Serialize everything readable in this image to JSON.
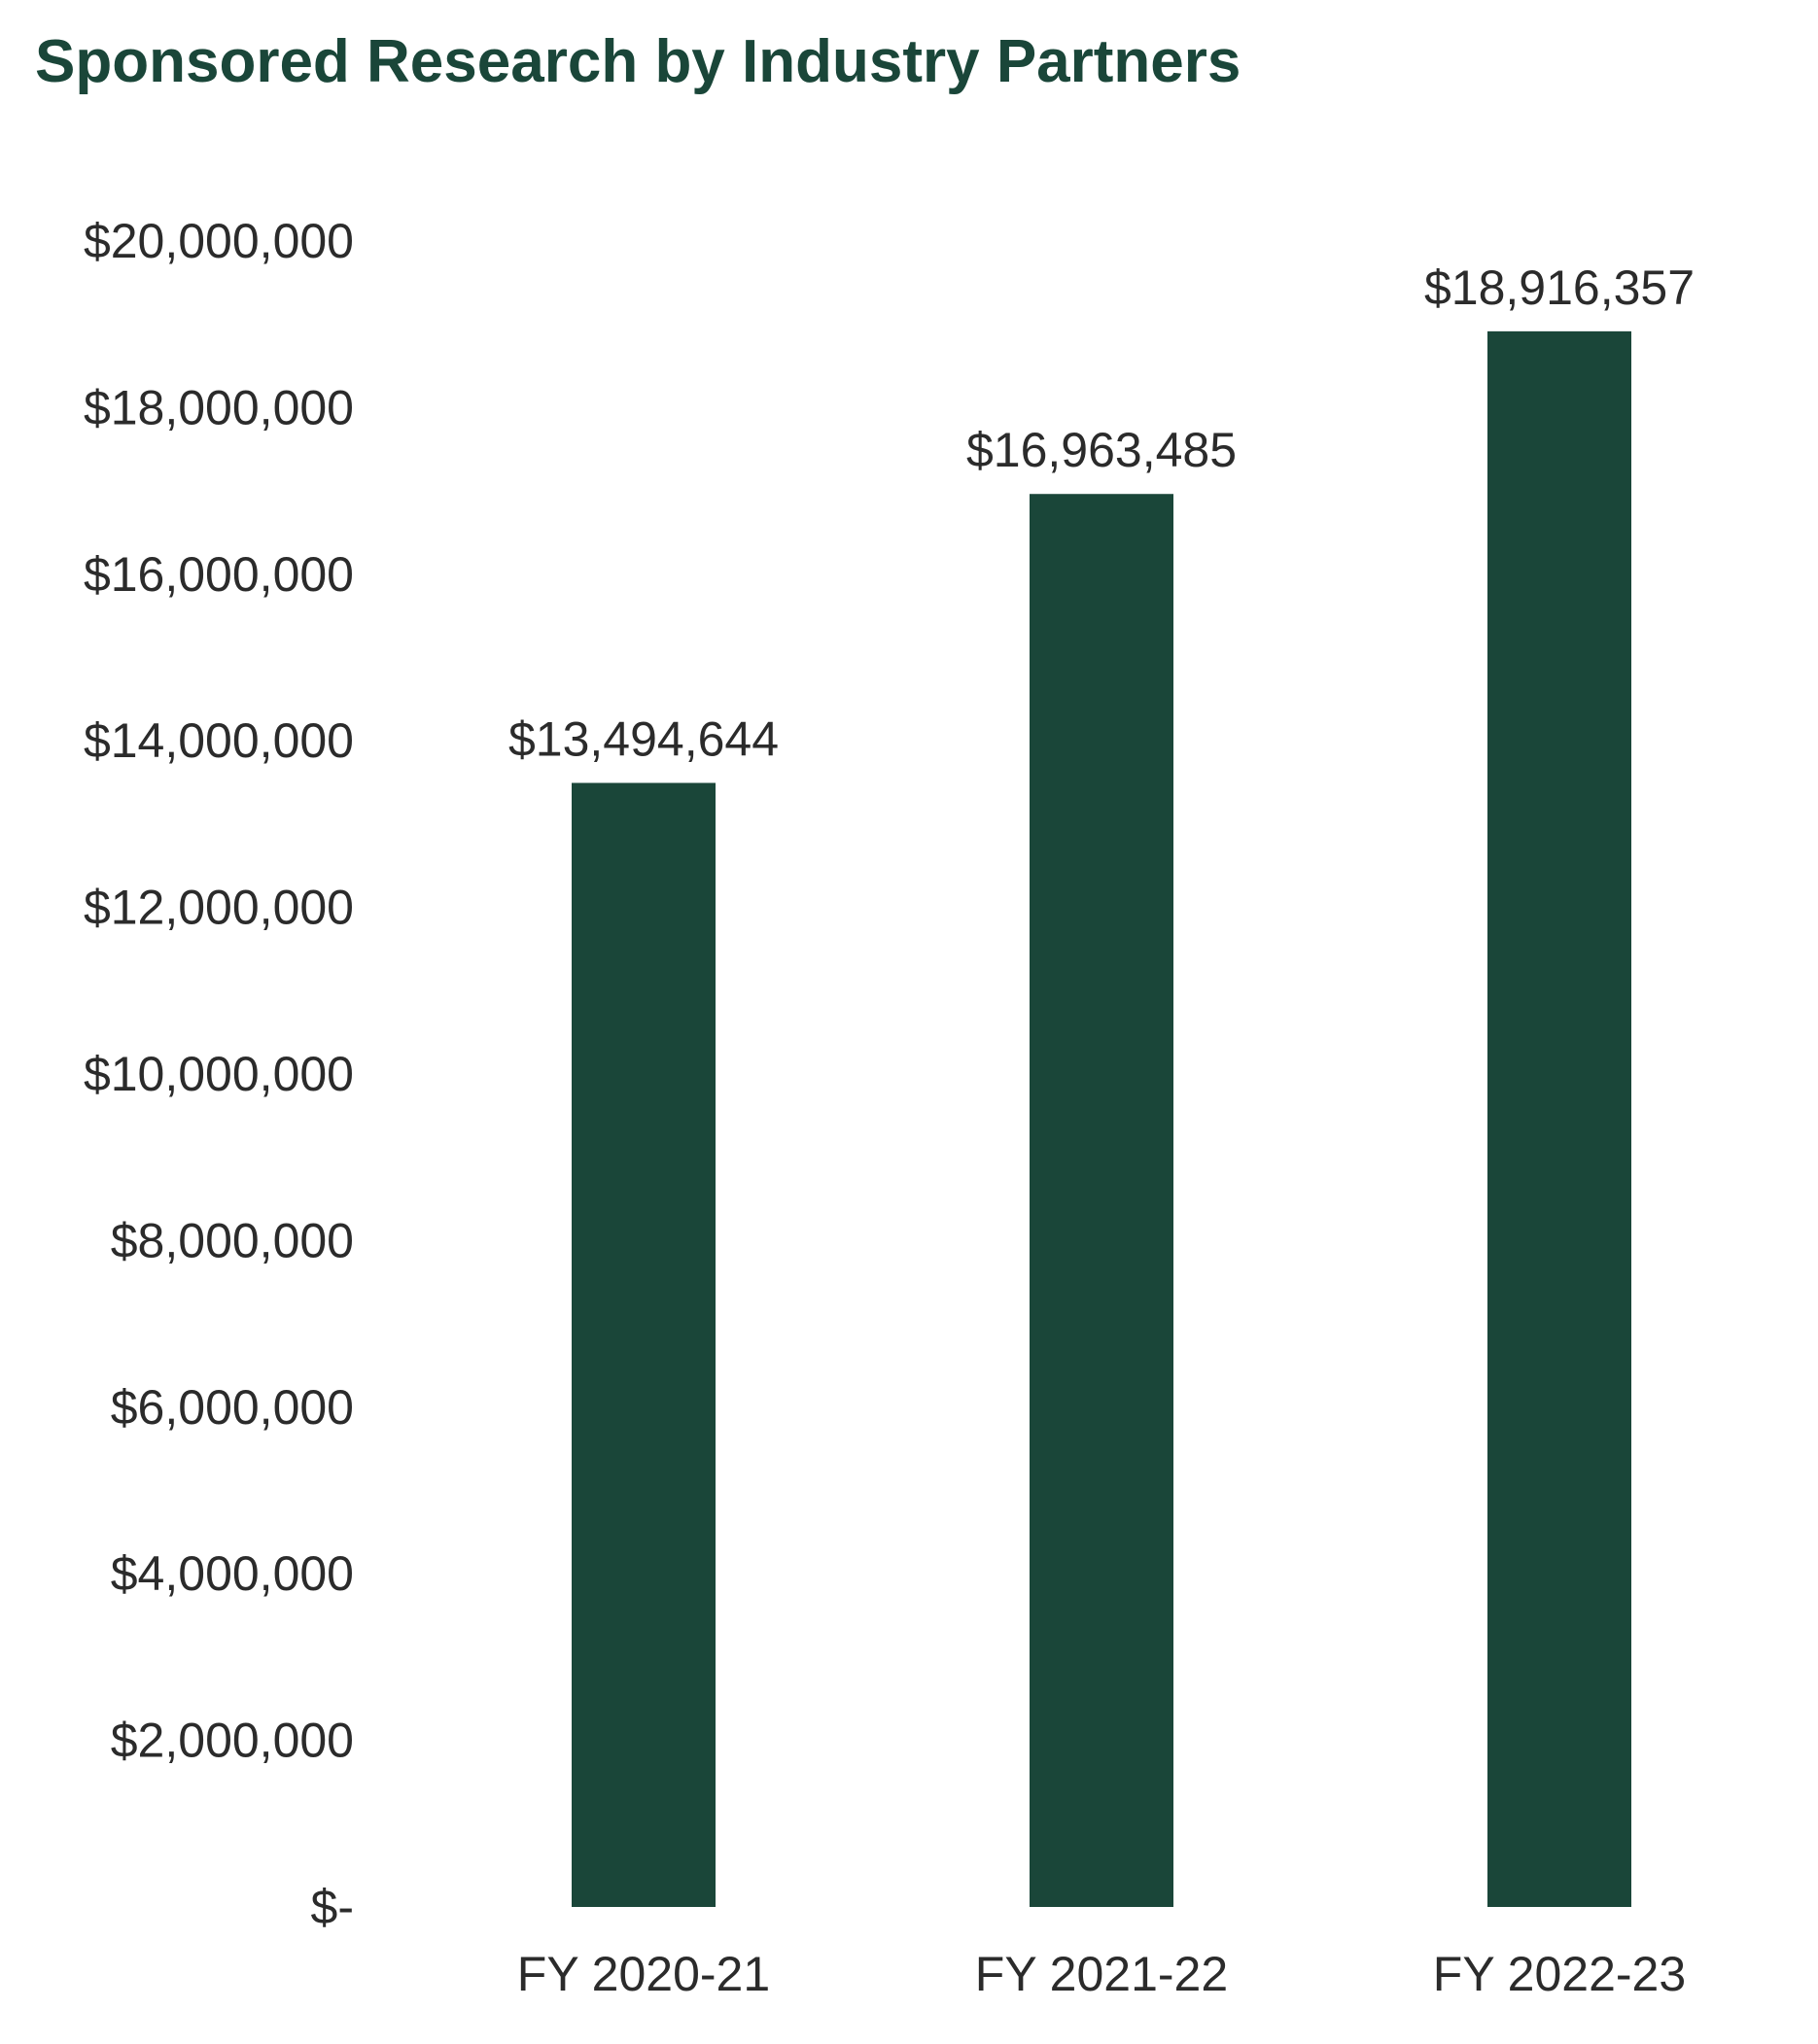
{
  "chart_data": {
    "type": "bar",
    "title": "Sponsored Research by Industry Partners",
    "xlabel": "",
    "ylabel": "",
    "categories": [
      "FY 2020-21",
      "FY 2021-22",
      "FY 2022-23"
    ],
    "values": [
      13494644,
      16963485,
      18916357
    ],
    "value_labels": [
      "$13,494,644",
      "$16,963,485",
      "$18,916,357"
    ],
    "ylim": [
      0,
      20000000
    ],
    "y_ticks": [
      0,
      2000000,
      4000000,
      6000000,
      8000000,
      10000000,
      12000000,
      14000000,
      16000000,
      18000000,
      20000000
    ],
    "y_tick_labels": [
      "$-",
      "$2,000,000",
      "$4,000,000",
      "$6,000,000",
      "$8,000,000",
      "$10,000,000",
      "$12,000,000",
      "$14,000,000",
      "$16,000,000",
      "$18,000,000",
      "$20,000,000"
    ],
    "grid": false,
    "legend": "none",
    "bar_color": "#1a4639",
    "title_color": "#1a4639"
  }
}
